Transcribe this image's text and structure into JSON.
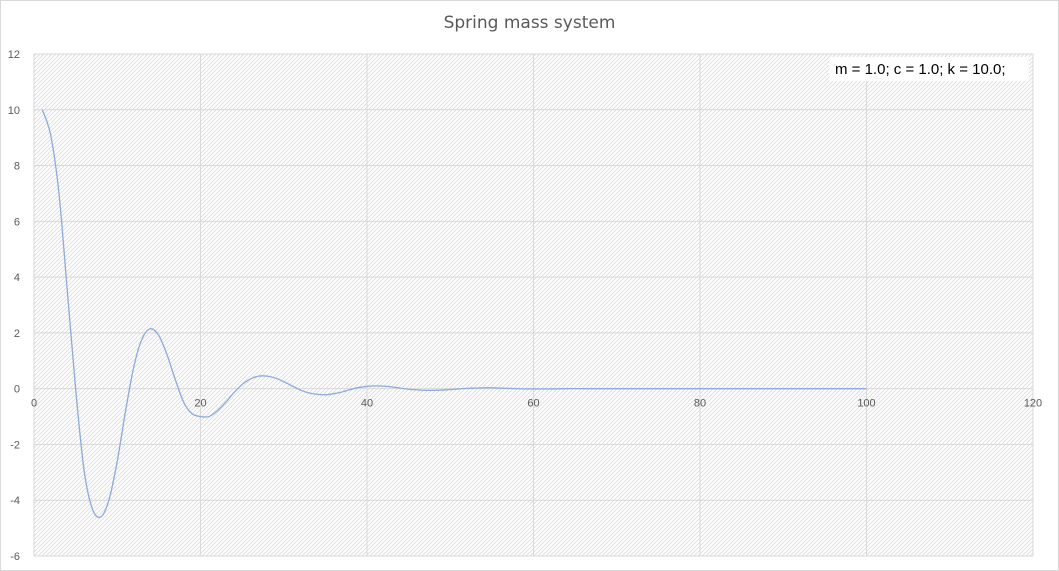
{
  "chart_data": {
    "type": "line",
    "title": "Spring mass system",
    "xlabel": "",
    "ylabel": "",
    "xlim": [
      0,
      120
    ],
    "ylim": [
      -6,
      12
    ],
    "x_ticks": [
      0,
      20,
      40,
      60,
      80,
      100,
      120
    ],
    "y_ticks": [
      -6,
      -4,
      -2,
      0,
      2,
      4,
      6,
      8,
      10,
      12
    ],
    "grid": true,
    "legend": "none",
    "annotation": "m = 1.0; c = 1.0; k = 10.0;",
    "line_color": "#8eaadb",
    "series": [
      {
        "points": [
          [
            1,
            10
          ],
          [
            2,
            9.1
          ],
          [
            3,
            7.0
          ],
          [
            4,
            3.5
          ],
          [
            5,
            0.0
          ],
          [
            6,
            -2.9
          ],
          [
            7,
            -4.3
          ],
          [
            8,
            -4.6
          ],
          [
            9,
            -4.0
          ],
          [
            10,
            -2.6
          ],
          [
            11,
            -0.8
          ],
          [
            12,
            0.8
          ],
          [
            13,
            1.8
          ],
          [
            14,
            2.15
          ],
          [
            15,
            1.9
          ],
          [
            16,
            1.2
          ],
          [
            17,
            0.3
          ],
          [
            18,
            -0.5
          ],
          [
            19,
            -0.9
          ],
          [
            20,
            -1.0
          ],
          [
            21,
            -1.0
          ],
          [
            22,
            -0.8
          ],
          [
            23,
            -0.5
          ],
          [
            24,
            -0.15
          ],
          [
            25,
            0.15
          ],
          [
            26,
            0.35
          ],
          [
            27,
            0.45
          ],
          [
            28,
            0.45
          ],
          [
            29,
            0.38
          ],
          [
            30,
            0.25
          ],
          [
            31,
            0.1
          ],
          [
            32,
            -0.05
          ],
          [
            33,
            -0.15
          ],
          [
            34,
            -0.2
          ],
          [
            35,
            -0.22
          ],
          [
            36,
            -0.18
          ],
          [
            37,
            -0.12
          ],
          [
            38,
            -0.03
          ],
          [
            39,
            0.04
          ],
          [
            40,
            0.08
          ],
          [
            41,
            0.1
          ],
          [
            42,
            0.09
          ],
          [
            43,
            0.06
          ],
          [
            44,
            0.02
          ],
          [
            45,
            -0.02
          ],
          [
            46,
            -0.04
          ],
          [
            47,
            -0.06
          ],
          [
            48,
            -0.06
          ],
          [
            49,
            -0.05
          ],
          [
            50,
            -0.03
          ],
          [
            51,
            -0.01
          ],
          [
            52,
            0.01
          ],
          [
            53,
            0.02
          ],
          [
            54,
            0.03
          ],
          [
            55,
            0.03
          ],
          [
            56,
            0.02
          ],
          [
            57,
            0.01
          ],
          [
            58,
            0.0
          ],
          [
            59,
            -0.01
          ],
          [
            60,
            -0.01
          ],
          [
            62,
            -0.01
          ],
          [
            64,
            0.0
          ],
          [
            66,
            0.0
          ],
          [
            68,
            0.0
          ],
          [
            70,
            0.0
          ],
          [
            75,
            0.0
          ],
          [
            80,
            0.0
          ],
          [
            85,
            0.0
          ],
          [
            90,
            0.0
          ],
          [
            95,
            0.0
          ],
          [
            100,
            0.0
          ]
        ]
      }
    ]
  }
}
